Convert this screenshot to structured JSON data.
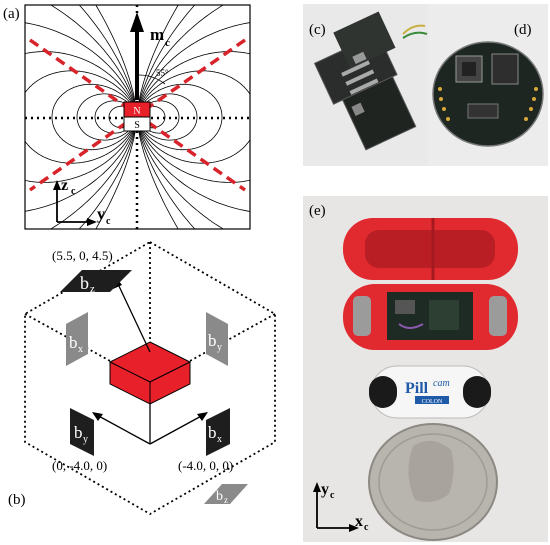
{
  "panels": {
    "a": "(a)",
    "b": "(b)",
    "c": "(c)",
    "d": "(d)",
    "e": "(e)"
  },
  "field_plot": {
    "moment_label": "m",
    "moment_sub": "c",
    "angle_label": "55°",
    "north": "N",
    "south": "S",
    "axis_z": "z",
    "axis_z_sub": "c",
    "axis_y": "y",
    "axis_y_sub": "c"
  },
  "sensor_layout": {
    "coord_top": "(5.5, 0, 4.5)",
    "coord_left": "(0, -4.0, 0)",
    "coord_right": "(-4.0, 0, 0)",
    "bz_top": "b",
    "bz_top_sub": "z",
    "bx_left": "b",
    "bx_left_sub": "x",
    "by_right": "b",
    "by_right_sub": "y",
    "by_front": "b",
    "by_front_sub": "y",
    "bx_front": "b",
    "bx_front_sub": "x",
    "bz_bottom": "b",
    "bz_bottom_sub": "z"
  },
  "photos": {
    "pill_brand": "Pill",
    "pill_brand2": "cam",
    "pill_model": "COLON",
    "axis_y": "y",
    "axis_y_sub": "c",
    "axis_x": "x",
    "axis_x_sub": "c"
  },
  "colors": {
    "magnet_red": "#e8202a",
    "dashed_red": "#d8232a",
    "capsule_red": "#e02a30",
    "sensor_dark": "#1e1e1e",
    "sensor_grey": "#8a8a8a"
  }
}
